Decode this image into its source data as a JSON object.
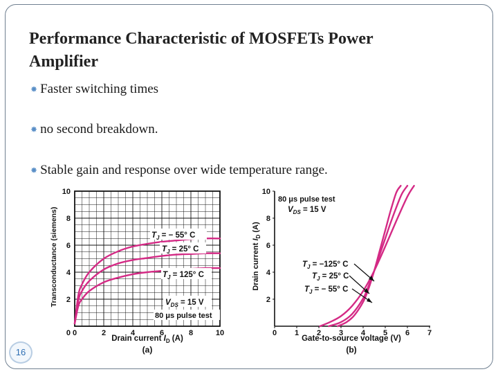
{
  "slide": {
    "title_line1": "Performance Characteristic of MOSFETs Power",
    "title_line2": "Amplifier",
    "bullets": [
      "Faster switching times",
      "no second breakdown.",
      "Stable gain and response over wide temperature range."
    ],
    "page_number": "16"
  },
  "colors": {
    "curve": "#d42a85",
    "bullet_marker": "#5a8fc7",
    "frame": "#6f7f90"
  },
  "chart_data": [
    {
      "type": "line",
      "panel_label": "(a)",
      "ylabel": "Transconductance (siemens)",
      "xlabel_main": "Drain current ",
      "xlabel_sym": "I",
      "xlabel_sub": "D",
      "xlabel_unit": " (A)",
      "xlim": [
        0,
        10
      ],
      "ylim": [
        0,
        10
      ],
      "xticks": [
        "0",
        "2",
        "4",
        "6",
        "8",
        "10"
      ],
      "yticks": [
        "2",
        "4",
        "6",
        "8",
        "10"
      ],
      "y_zero_label": "0",
      "grid": true,
      "series": [
        {
          "name": "TJ = − 55° C",
          "x": [
            0,
            0.25,
            0.5,
            1,
            2,
            3,
            4,
            5,
            6,
            7,
            8,
            9,
            10
          ],
          "y": [
            0.2,
            2.3,
            3.1,
            4.0,
            5.0,
            5.55,
            5.9,
            6.1,
            6.25,
            6.35,
            6.45,
            6.5,
            6.5
          ]
        },
        {
          "name": "TJ = 25° C",
          "x": [
            0,
            0.25,
            0.5,
            1,
            2,
            3,
            4,
            5,
            6,
            7,
            8,
            9,
            10
          ],
          "y": [
            0.2,
            1.9,
            2.6,
            3.35,
            4.2,
            4.65,
            4.9,
            5.05,
            5.2,
            5.3,
            5.35,
            5.4,
            5.4
          ]
        },
        {
          "name": "TJ = 125° C",
          "x": [
            0,
            0.25,
            0.5,
            1,
            2,
            3,
            4,
            5,
            6,
            7,
            8,
            9,
            10
          ],
          "y": [
            0.2,
            1.5,
            2.0,
            2.6,
            3.25,
            3.6,
            3.85,
            4.0,
            4.1,
            4.2,
            4.25,
            4.3,
            4.3
          ]
        }
      ],
      "annotations": {
        "tj_neg55": {
          "pre": "T",
          "sub": "J",
          "post": " = − 55° C"
        },
        "tj_25": {
          "pre": "T",
          "sub": "J",
          "post": " = 25° C"
        },
        "tj_125": {
          "pre": "T",
          "sub": "J",
          "post": " = 125° C"
        },
        "vds": {
          "pre": "V",
          "sub": "DS",
          "post": " = 15 V"
        },
        "pulse": "80 μs pulse test"
      }
    },
    {
      "type": "line",
      "panel_label": "(b)",
      "ylabel_main": "Drain current ",
      "ylabel_sym": "I",
      "ylabel_sub": "D",
      "ylabel_unit": " (A)",
      "xlabel": "Gate-to-source voltage (V)",
      "xlim": [
        0,
        7
      ],
      "ylim": [
        0,
        10
      ],
      "xticks": [
        "0",
        "1",
        "2",
        "3",
        "4",
        "5",
        "6",
        "7"
      ],
      "yticks": [
        "2",
        "4",
        "6",
        "8",
        "10"
      ],
      "grid": false,
      "series": [
        {
          "name": "TJ = −125° C",
          "x": [
            2.05,
            2.5,
            3.0,
            3.5,
            4.0,
            4.5,
            5.0,
            5.5,
            6.0,
            6.3
          ],
          "y": [
            0,
            0.3,
            0.75,
            1.5,
            2.6,
            4.1,
            5.9,
            7.8,
            9.6,
            10.4
          ]
        },
        {
          "name": "TJ = 25° C",
          "x": [
            2.45,
            3.0,
            3.5,
            4.0,
            4.25,
            4.5,
            4.75,
            5.0,
            5.25,
            5.5,
            5.75,
            6.0
          ],
          "y": [
            0,
            0.3,
            0.9,
            2.05,
            3.0,
            4.1,
            5.3,
            6.5,
            7.7,
            8.8,
            9.8,
            10.4
          ]
        },
        {
          "name": "TJ = − 55° C",
          "x": [
            2.85,
            3.25,
            3.6,
            4.0,
            4.25,
            4.5,
            4.75,
            5.0,
            5.25,
            5.5,
            5.7
          ],
          "y": [
            0,
            0.3,
            0.8,
            1.8,
            2.8,
            4.1,
            5.6,
            7.1,
            8.6,
            9.9,
            10.4
          ]
        }
      ],
      "annotations": {
        "pulse": "80 μs pulse test",
        "vds": {
          "pre": "V",
          "sub": "DS",
          "post": " = 15 V"
        },
        "tj_125": {
          "pre": "T",
          "sub": "J",
          "post": " = −125° C"
        },
        "tj_25": {
          "pre": "T",
          "sub": "J",
          "post": " = 25° C"
        },
        "tj_55": {
          "pre": "T",
          "sub": "J",
          "post": " = − 55° C"
        }
      }
    }
  ]
}
